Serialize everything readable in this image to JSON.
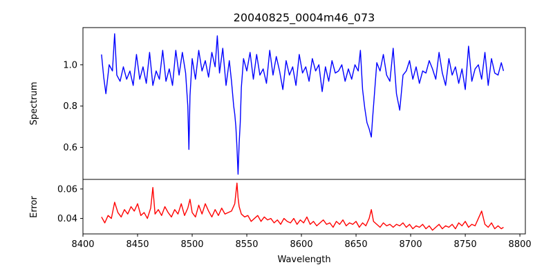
{
  "chart_data": {
    "type": "line",
    "title": "20040825_0004m46_073",
    "xlabel": "Wavelength",
    "xlim": [
      8400,
      8805
    ],
    "xticks": [
      8400,
      8450,
      8500,
      8550,
      8600,
      8650,
      8700,
      8750,
      8800
    ],
    "grid": false,
    "panels": [
      {
        "id": "spectrum",
        "ylabel": "Spectrum",
        "ylim": [
          0.445,
          1.18
        ],
        "yticks": [
          0.6,
          0.8,
          1.0
        ],
        "ytick_labels": [
          "0.6",
          "0.8",
          "1.0"
        ],
        "series": [
          {
            "color": "#0000ff",
            "x": [
              8417,
              8419,
              8421,
              8424,
              8427,
              8429,
              8431,
              8434,
              8437,
              8440,
              8443,
              8446,
              8449,
              8452,
              8455,
              8458,
              8461,
              8464,
              8467,
              8470,
              8473,
              8476,
              8479,
              8482,
              8485,
              8488,
              8491,
              8494,
              8496,
              8497,
              8498,
              8500,
              8503,
              8506,
              8509,
              8512,
              8515,
              8518,
              8521,
              8523,
              8525,
              8528,
              8531,
              8534,
              8536,
              8538,
              8539,
              8540,
              8541,
              8542,
              8543,
              8544,
              8545,
              8547,
              8550,
              8553,
              8556,
              8559,
              8562,
              8565,
              8568,
              8571,
              8574,
              8577,
              8580,
              8583,
              8586,
              8589,
              8592,
              8595,
              8598,
              8601,
              8604,
              8607,
              8610,
              8613,
              8616,
              8619,
              8622,
              8625,
              8628,
              8631,
              8634,
              8637,
              8640,
              8643,
              8646,
              8649,
              8652,
              8654,
              8656,
              8658,
              8660,
              8662,
              8664,
              8665,
              8667,
              8669,
              8672,
              8675,
              8678,
              8681,
              8684,
              8687,
              8690,
              8693,
              8696,
              8699,
              8702,
              8705,
              8708,
              8711,
              8714,
              8717,
              8720,
              8723,
              8726,
              8729,
              8732,
              8735,
              8738,
              8741,
              8744,
              8747,
              8750,
              8753,
              8756,
              8759,
              8762,
              8765,
              8768,
              8771,
              8774,
              8777,
              8780,
              8783,
              8785
            ],
            "y": [
              1.05,
              0.94,
              0.86,
              1.0,
              0.97,
              1.15,
              0.95,
              0.92,
              0.99,
              0.93,
              0.97,
              0.9,
              1.05,
              0.93,
              0.99,
              0.91,
              1.06,
              0.9,
              0.97,
              0.93,
              1.07,
              0.92,
              0.98,
              0.9,
              1.07,
              0.95,
              1.06,
              0.96,
              0.8,
              0.59,
              0.85,
              1.03,
              0.93,
              1.07,
              0.97,
              1.02,
              0.94,
              1.06,
              0.99,
              1.14,
              0.96,
              1.08,
              0.9,
              1.02,
              0.92,
              0.8,
              0.76,
              0.7,
              0.6,
              0.47,
              0.62,
              0.72,
              0.89,
              1.03,
              0.97,
              1.06,
              0.93,
              1.05,
              0.95,
              0.98,
              0.91,
              1.07,
              0.95,
              1.04,
              0.97,
              0.88,
              1.02,
              0.95,
              0.99,
              0.9,
              1.05,
              0.96,
              0.99,
              0.92,
              1.03,
              0.97,
              1.0,
              0.87,
              0.99,
              0.92,
              1.02,
              0.96,
              0.97,
              1.0,
              0.92,
              0.98,
              0.93,
              1.0,
              0.97,
              1.07,
              0.88,
              0.79,
              0.72,
              0.69,
              0.65,
              0.73,
              0.87,
              1.01,
              0.97,
              1.05,
              0.95,
              0.92,
              1.08,
              0.86,
              0.78,
              0.95,
              0.97,
              1.02,
              0.93,
              0.99,
              0.91,
              0.97,
              0.96,
              1.02,
              0.98,
              0.93,
              1.06,
              0.96,
              0.9,
              1.03,
              0.95,
              0.99,
              0.91,
              0.98,
              0.88,
              1.09,
              0.92,
              0.98,
              1.0,
              0.93,
              1.06,
              0.9,
              1.03,
              0.96,
              0.95,
              1.01,
              0.97
            ]
          }
        ]
      },
      {
        "id": "error",
        "ylabel": "Error",
        "ylim": [
          0.0295,
          0.0665
        ],
        "yticks": [
          0.04,
          0.06
        ],
        "ytick_labels": [
          "0.04",
          "0.06"
        ],
        "series": [
          {
            "color": "#ff0000",
            "x": [
              8417,
              8420,
              8423,
              8426,
              8429,
              8432,
              8435,
              8438,
              8441,
              8444,
              8447,
              8450,
              8453,
              8456,
              8459,
              8462,
              8464,
              8466,
              8469,
              8472,
              8475,
              8478,
              8481,
              8484,
              8487,
              8490,
              8493,
              8496,
              8498,
              8500,
              8503,
              8506,
              8509,
              8512,
              8515,
              8518,
              8521,
              8524,
              8527,
              8530,
              8533,
              8536,
              8539,
              8541,
              8542,
              8543,
              8545,
              8548,
              8551,
              8554,
              8557,
              8560,
              8563,
              8566,
              8569,
              8572,
              8575,
              8578,
              8581,
              8584,
              8587,
              8590,
              8593,
              8596,
              8599,
              8602,
              8605,
              8608,
              8611,
              8614,
              8617,
              8620,
              8623,
              8626,
              8629,
              8632,
              8635,
              8638,
              8641,
              8644,
              8647,
              8650,
              8653,
              8656,
              8659,
              8662,
              8664,
              8666,
              8669,
              8672,
              8675,
              8678,
              8681,
              8684,
              8687,
              8690,
              8693,
              8696,
              8699,
              8702,
              8705,
              8708,
              8711,
              8714,
              8717,
              8720,
              8723,
              8726,
              8729,
              8732,
              8735,
              8738,
              8741,
              8744,
              8747,
              8750,
              8753,
              8756,
              8759,
              8762,
              8765,
              8768,
              8771,
              8774,
              8777,
              8780,
              8783,
              8785
            ],
            "y": [
              0.041,
              0.037,
              0.042,
              0.04,
              0.051,
              0.044,
              0.041,
              0.046,
              0.043,
              0.048,
              0.045,
              0.05,
              0.042,
              0.044,
              0.04,
              0.047,
              0.061,
              0.043,
              0.046,
              0.042,
              0.048,
              0.044,
              0.041,
              0.046,
              0.043,
              0.05,
              0.042,
              0.047,
              0.053,
              0.044,
              0.041,
              0.049,
              0.043,
              0.05,
              0.045,
              0.041,
              0.046,
              0.042,
              0.047,
              0.043,
              0.044,
              0.045,
              0.05,
              0.064,
              0.054,
              0.048,
              0.043,
              0.041,
              0.042,
              0.038,
              0.04,
              0.042,
              0.038,
              0.041,
              0.039,
              0.04,
              0.037,
              0.039,
              0.036,
              0.04,
              0.038,
              0.037,
              0.04,
              0.036,
              0.039,
              0.037,
              0.041,
              0.036,
              0.038,
              0.035,
              0.037,
              0.039,
              0.036,
              0.037,
              0.034,
              0.038,
              0.036,
              0.039,
              0.035,
              0.037,
              0.036,
              0.038,
              0.034,
              0.037,
              0.035,
              0.04,
              0.046,
              0.038,
              0.036,
              0.034,
              0.037,
              0.035,
              0.036,
              0.034,
              0.036,
              0.035,
              0.037,
              0.034,
              0.036,
              0.033,
              0.035,
              0.034,
              0.036,
              0.033,
              0.035,
              0.032,
              0.034,
              0.036,
              0.033,
              0.035,
              0.034,
              0.036,
              0.033,
              0.037,
              0.035,
              0.038,
              0.034,
              0.036,
              0.035,
              0.04,
              0.045,
              0.036,
              0.034,
              0.037,
              0.033,
              0.035,
              0.033,
              0.034
            ]
          }
        ]
      }
    ]
  }
}
